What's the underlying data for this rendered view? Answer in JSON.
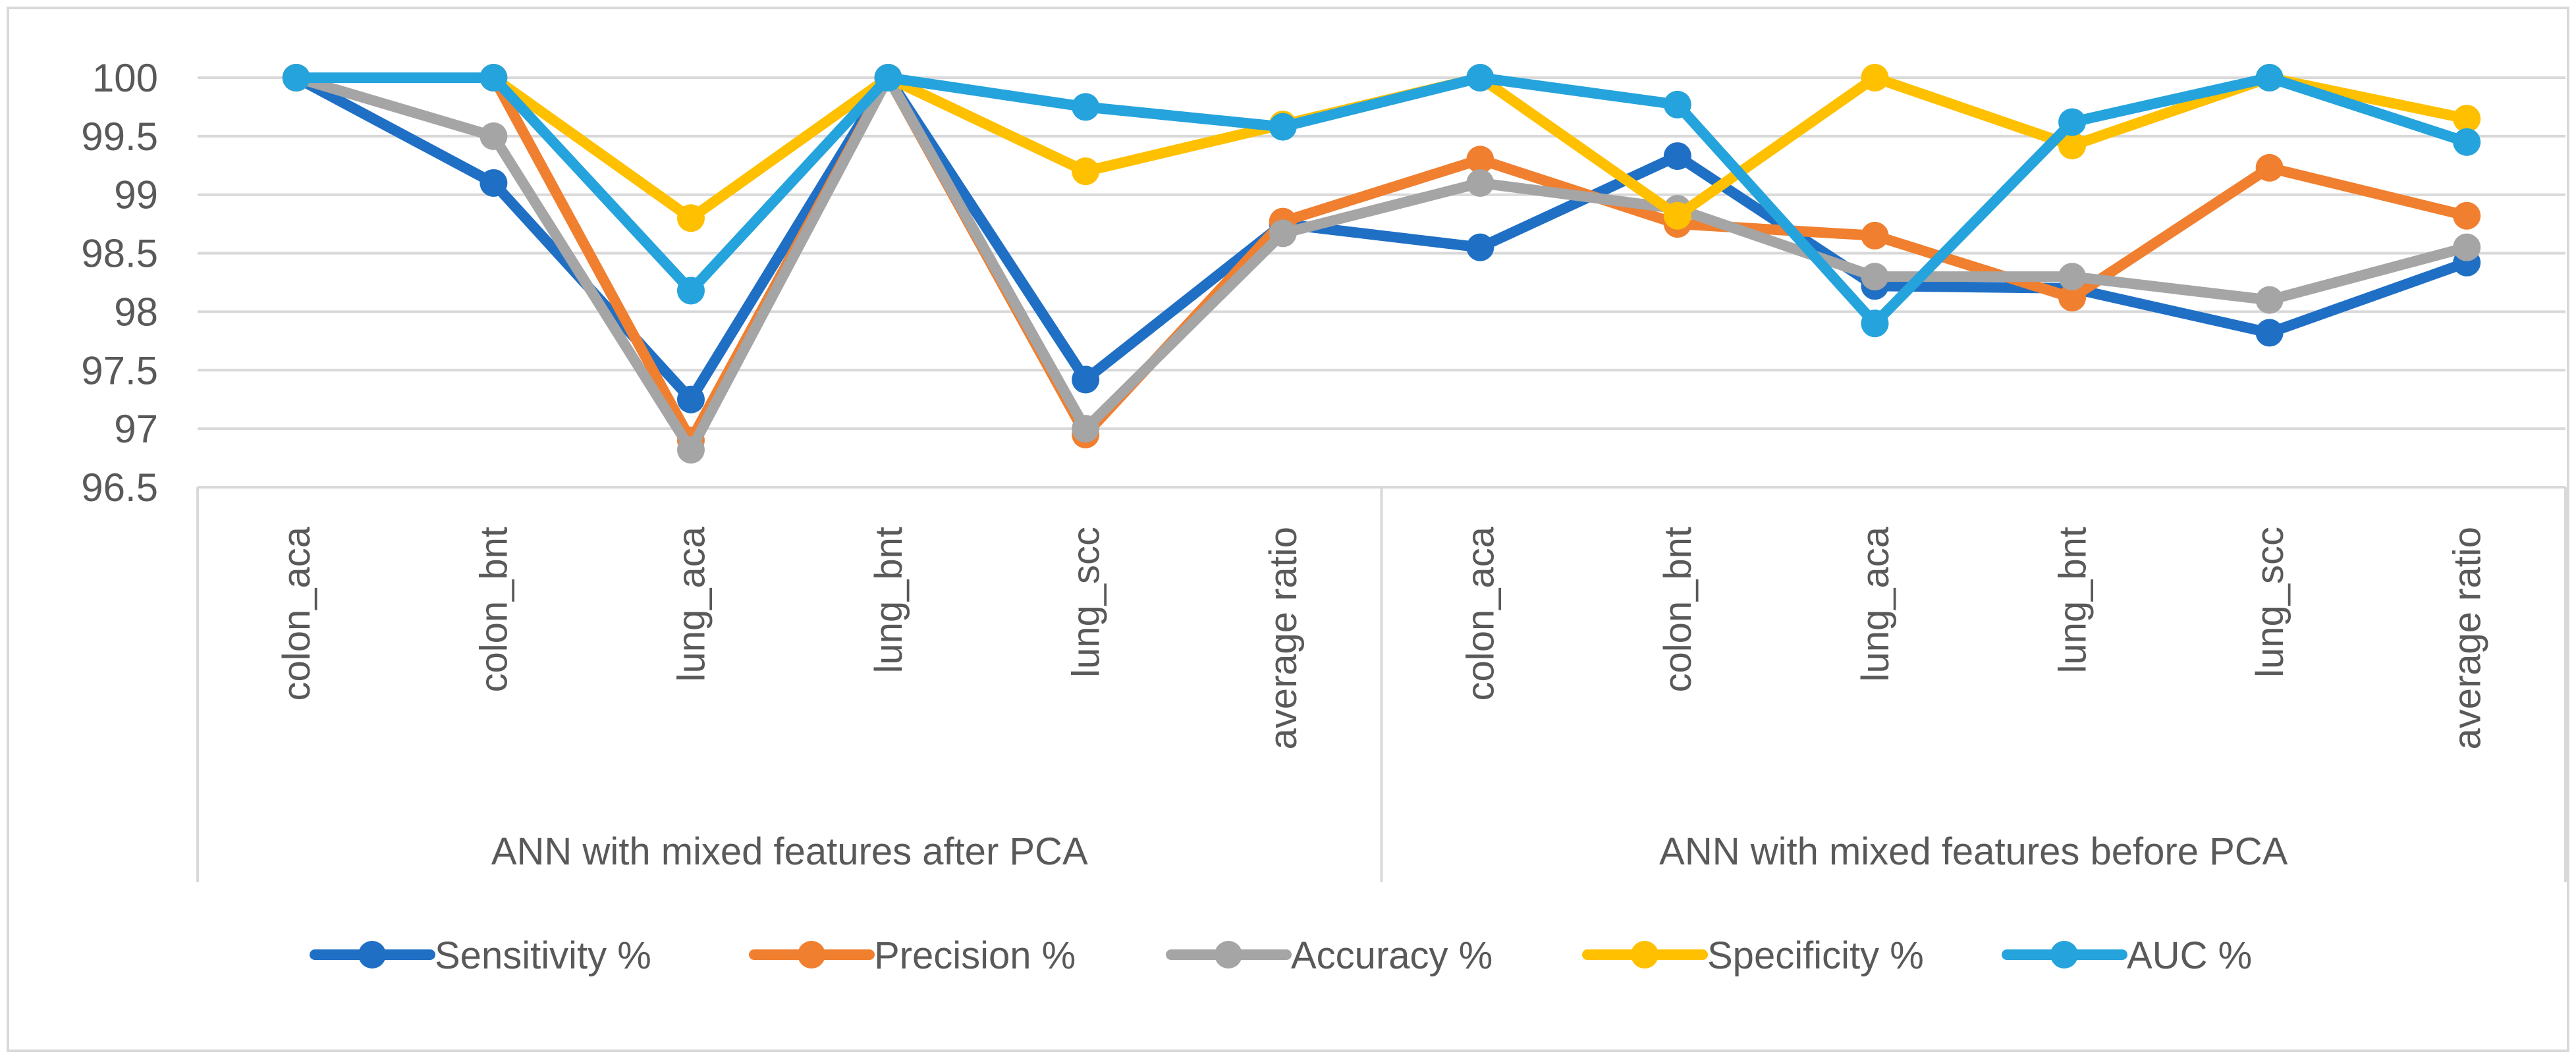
{
  "chart_data": {
    "type": "line",
    "title": "",
    "xlabel": "",
    "ylabel": "",
    "ylim": [
      96.5,
      100
    ],
    "yticks": [
      96.5,
      97,
      97.5,
      98,
      98.5,
      99,
      99.5,
      100
    ],
    "ytick_labels": [
      "96.5",
      "97",
      "97.5",
      "98",
      "98.5",
      "99",
      "99.5",
      "100"
    ],
    "grid": true,
    "legend_position": "bottom",
    "groups": [
      {
        "label": "ANN with mixed features after PCA",
        "start": 0,
        "count": 6
      },
      {
        "label": "ANN with mixed features before PCA",
        "start": 6,
        "count": 6
      }
    ],
    "categories": [
      "colon_aca",
      "colon_bnt",
      "lung_aca",
      "lung_bnt",
      "lung_scc",
      "average ratio",
      "colon_aca",
      "colon_bnt",
      "lung_aca",
      "lung_bnt",
      "lung_scc",
      "average ratio"
    ],
    "series": [
      {
        "name": "Sensitivity %",
        "color": "#1F6FC5",
        "values": [
          100,
          99.1,
          97.25,
          100,
          97.42,
          98.75,
          98.55,
          99.33,
          98.22,
          98.2,
          97.82,
          98.42
        ]
      },
      {
        "name": "Precision %",
        "color": "#F07F2F",
        "values": [
          100,
          100,
          96.9,
          100,
          96.95,
          98.77,
          99.3,
          98.75,
          98.65,
          98.12,
          99.23,
          98.82
        ]
      },
      {
        "name": "Accuracy %",
        "color": "#A5A5A5",
        "values": [
          100,
          99.5,
          96.82,
          100,
          97.0,
          98.67,
          99.1,
          98.88,
          98.3,
          98.3,
          98.1,
          98.55
        ]
      },
      {
        "name": "Specificity %",
        "color": "#FFC000",
        "values": [
          100,
          100,
          98.8,
          100,
          99.2,
          99.6,
          100,
          98.82,
          100,
          99.42,
          100,
          99.65
        ]
      },
      {
        "name": "AUC %",
        "color": "#25A3DC",
        "values": [
          100,
          100,
          98.18,
          100,
          99.75,
          99.58,
          100,
          99.77,
          97.9,
          99.62,
          100,
          99.45
        ]
      }
    ]
  }
}
